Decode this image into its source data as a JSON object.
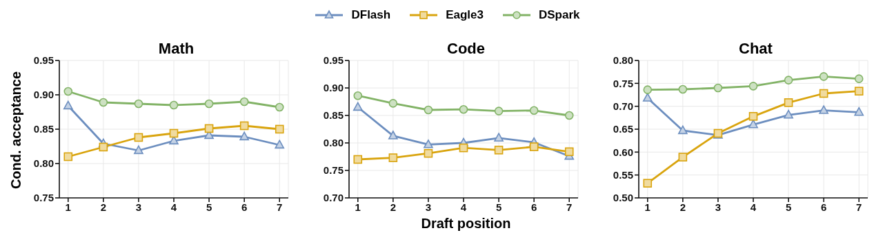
{
  "chart_data": [
    {
      "type": "line",
      "title": "Math",
      "ylabel": "Cond. acceptance",
      "categories": [
        "1",
        "2",
        "3",
        "4",
        "5",
        "6",
        "7"
      ],
      "ylim": [
        0.75,
        0.95
      ],
      "yticks": [
        {
          "value": 0.75,
          "label": "0.75"
        },
        {
          "value": 0.8,
          "label": "0.80"
        },
        {
          "value": 0.85,
          "label": "0.85"
        },
        {
          "value": 0.9,
          "label": "0.90"
        },
        {
          "value": 0.95,
          "label": "0.95"
        }
      ],
      "grid": true,
      "legend": "top",
      "series": [
        {
          "name": "DFlash",
          "color": "#6c8ebf",
          "marker": "triangle",
          "values": [
            0.884,
            0.829,
            0.819,
            0.833,
            0.841,
            0.839,
            0.827
          ]
        },
        {
          "name": "Eagle3",
          "color": "#d9a40e",
          "marker": "square",
          "values": [
            0.81,
            0.824,
            0.838,
            0.844,
            0.851,
            0.855,
            0.85
          ]
        },
        {
          "name": "DSpark",
          "color": "#82b366",
          "marker": "circle",
          "values": [
            0.905,
            0.889,
            0.887,
            0.885,
            0.887,
            0.89,
            0.882
          ]
        }
      ]
    },
    {
      "type": "line",
      "title": "Code",
      "xlabel": "Draft position",
      "categories": [
        "1",
        "2",
        "3",
        "4",
        "5",
        "6",
        "7"
      ],
      "ylim": [
        0.7,
        0.95
      ],
      "yticks": [
        {
          "value": 0.7,
          "label": "0.70"
        },
        {
          "value": 0.75,
          "label": "0.75"
        },
        {
          "value": 0.8,
          "label": "0.80"
        },
        {
          "value": 0.85,
          "label": "0.85"
        },
        {
          "value": 0.9,
          "label": "0.90"
        },
        {
          "value": 0.95,
          "label": "0.95"
        }
      ],
      "grid": true,
      "series": [
        {
          "color": "#6c8ebf",
          "marker": "triangle",
          "values": [
            0.865,
            0.813,
            0.797,
            0.8,
            0.809,
            0.801,
            0.776
          ]
        },
        {
          "color": "#d9a40e",
          "marker": "square",
          "values": [
            0.77,
            0.773,
            0.781,
            0.791,
            0.787,
            0.793,
            0.784
          ]
        },
        {
          "color": "#82b366",
          "marker": "circle",
          "values": [
            0.886,
            0.872,
            0.86,
            0.861,
            0.858,
            0.859,
            0.85
          ]
        }
      ]
    },
    {
      "type": "line",
      "title": "Chat",
      "categories": [
        "1",
        "2",
        "3",
        "4",
        "5",
        "6",
        "7"
      ],
      "ylim": [
        0.5,
        0.8
      ],
      "yticks": [
        {
          "value": 0.5,
          "label": "0.50"
        },
        {
          "value": 0.55,
          "label": "0.55"
        },
        {
          "value": 0.6,
          "label": "0.60"
        },
        {
          "value": 0.65,
          "label": "0.65"
        },
        {
          "value": 0.7,
          "label": "0.70"
        },
        {
          "value": 0.75,
          "label": "0.75"
        },
        {
          "value": 0.8,
          "label": "0.80"
        }
      ],
      "grid": true,
      "series": [
        {
          "color": "#6c8ebf",
          "marker": "triangle",
          "values": [
            0.718,
            0.647,
            0.637,
            0.66,
            0.681,
            0.691,
            0.687
          ]
        },
        {
          "color": "#d9a40e",
          "marker": "square",
          "values": [
            0.532,
            0.589,
            0.641,
            0.678,
            0.708,
            0.728,
            0.733
          ]
        },
        {
          "color": "#82b366",
          "marker": "circle",
          "values": [
            0.736,
            0.737,
            0.74,
            0.744,
            0.757,
            0.765,
            0.76
          ]
        }
      ]
    }
  ]
}
